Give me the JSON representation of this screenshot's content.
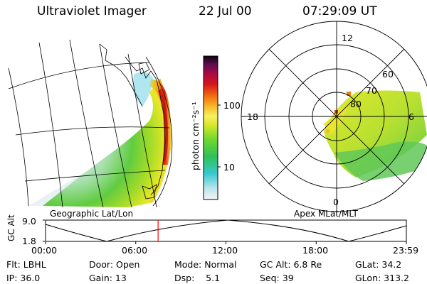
{
  "header": {
    "instrument": "Ultraviolet Imager",
    "date": "22 Jul 00",
    "time": "07:29:09 UT"
  },
  "colorbar": {
    "unit_label": "photon cm⁻²s⁻¹",
    "tick_100": "100",
    "tick_10": "10"
  },
  "left_panel": {
    "caption": "Geographic Lat/Lon"
  },
  "right_panel": {
    "caption": "Apex MLat/MLT",
    "mlt_12": "12",
    "mlt_18": "18",
    "mlt_6": "6",
    "mlt_0": "0",
    "lat_60": "60",
    "lat_70": "70",
    "lat_80": "80"
  },
  "altitude_plot": {
    "ylabel": "GC Alt",
    "y_top": "9.0",
    "y_bottom": "1.8",
    "x_ticks": [
      "00:00",
      "06:00",
      "12:00",
      "18:00",
      "23:59"
    ],
    "current_time_fraction": 0.3119
  },
  "status": {
    "flt": "Flt: LBHL",
    "door": "Door: Open",
    "mode": "Mode: Normal",
    "gc_alt": "GC Alt: 6.8 Re",
    "glat": "GLat:  34.2",
    "ip": "IP: 36.0",
    "gain": "Gain: 13",
    "dsp": "Dsp:    5.1",
    "seq": "Seq: 39",
    "glon": "GLon: 313.2"
  },
  "colors": {
    "accent_red": "#ff0000",
    "grid": "#000000"
  }
}
